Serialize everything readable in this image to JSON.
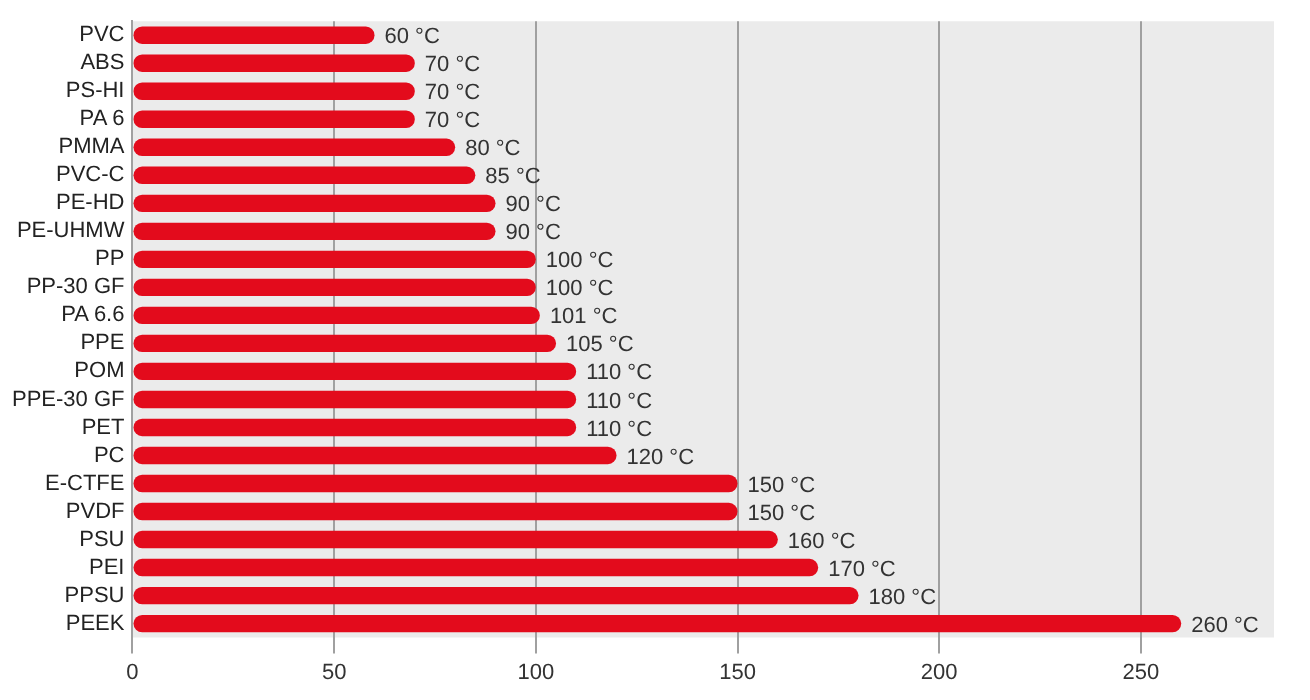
{
  "chart_data": {
    "type": "bar",
    "orientation": "horizontal",
    "categories": [
      "PVC",
      "ABS",
      "PS-HI",
      "PA 6",
      "PMMA",
      "PVC-C",
      "PE-HD",
      "PE-UHMW",
      "PP",
      "PP-30 GF",
      "PA 6.6",
      "PPE",
      "POM",
      "PPE-30 GF",
      "PET",
      "PC",
      "E-CTFE",
      "PVDF",
      "PSU",
      "PEI",
      "PPSU",
      "PEEK"
    ],
    "values": [
      60,
      70,
      70,
      70,
      80,
      85,
      90,
      90,
      100,
      100,
      101,
      105,
      110,
      110,
      110,
      120,
      150,
      150,
      160,
      170,
      180,
      260
    ],
    "value_labels": [
      "60 °C",
      "70 °C",
      "70 °C",
      "70 °C",
      "80 °C",
      "85 °C",
      "90 °C",
      "90 °C",
      "100 °C",
      "100 °C",
      "101 °C",
      "105 °C",
      "110 °C",
      "110 °C",
      "110 °C",
      "120 °C",
      "150 °C",
      "150 °C",
      "160 °C",
      "170 °C",
      "180 °C",
      "260 °C"
    ],
    "color": "#e30b1c",
    "xlim": [
      0,
      283
    ],
    "xticks": [
      0,
      50,
      100,
      150,
      200,
      250
    ],
    "grid": "x",
    "legend": false
  }
}
